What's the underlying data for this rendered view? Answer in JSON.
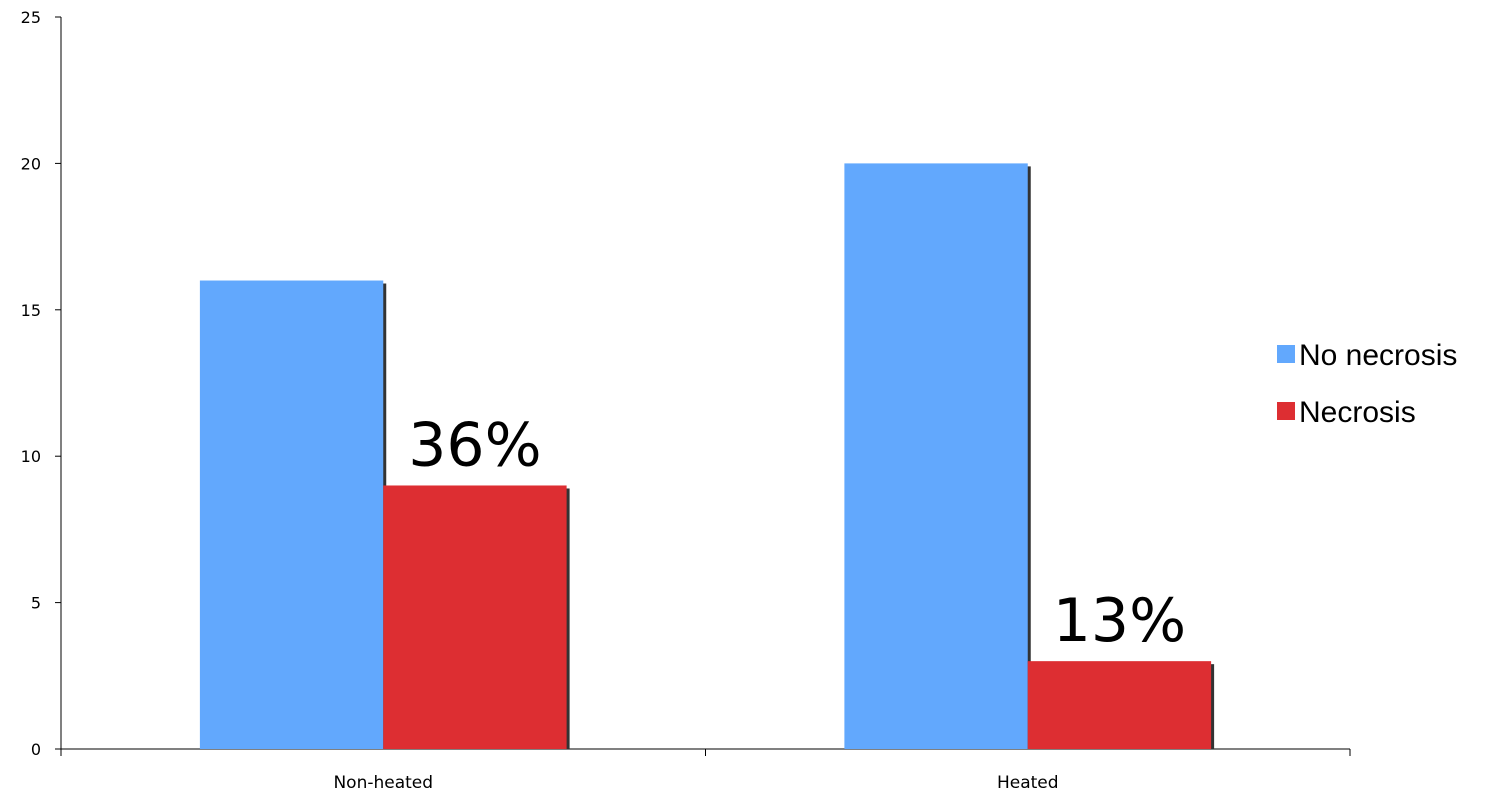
{
  "chart_data": {
    "type": "bar",
    "categories": [
      "Non-heated",
      "Heated"
    ],
    "series": [
      {
        "name": "No necrosis",
        "values": [
          16,
          20
        ],
        "color": "#62a8fd"
      },
      {
        "name": "Necrosis",
        "values": [
          9,
          3
        ],
        "color": "#dd2e32"
      }
    ],
    "data_labels": [
      "36%",
      "13%"
    ],
    "yticks": [
      "0",
      "5",
      "10",
      "15",
      "20",
      "25"
    ],
    "ylim": [
      0,
      25
    ],
    "grid": false,
    "legend_position": "right"
  }
}
